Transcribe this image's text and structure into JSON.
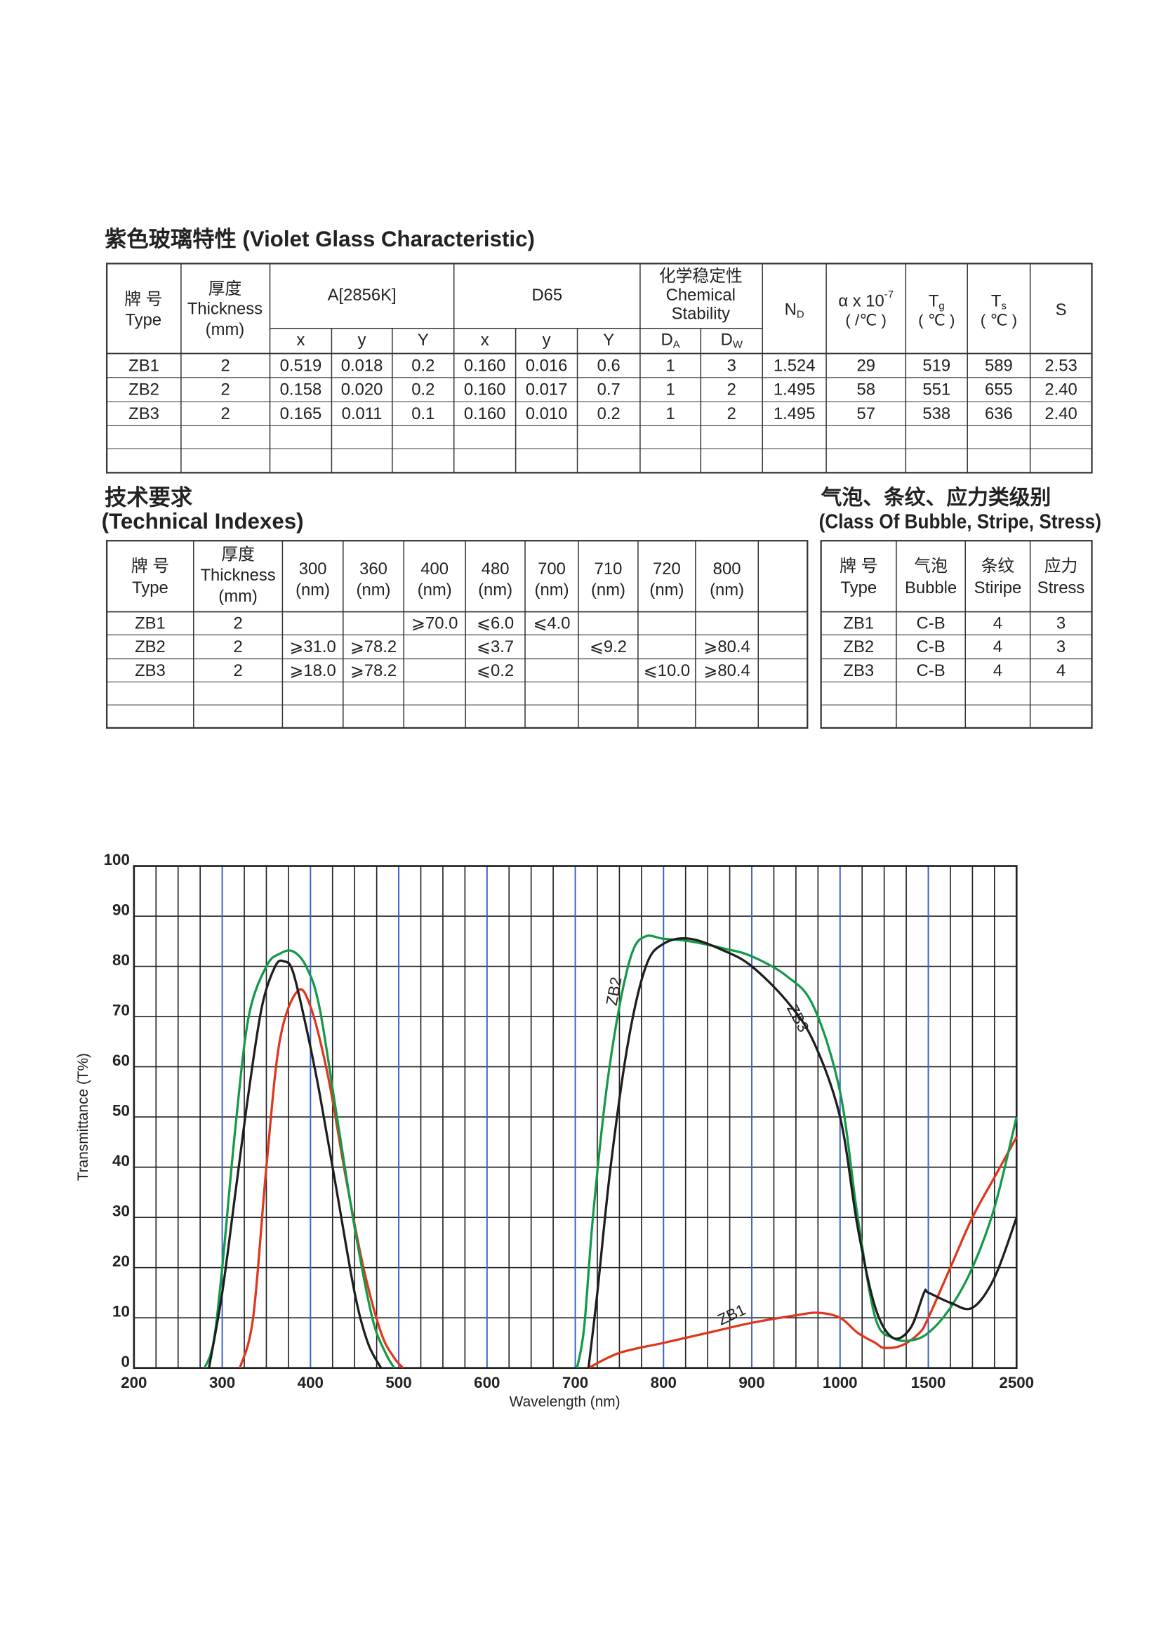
{
  "table1": {
    "title": "紫色玻璃特性 (Violet Glass Characteristic)",
    "h_type": [
      "牌 号",
      "Type"
    ],
    "h_thickness": [
      "厚度",
      "Thickness",
      "(mm)"
    ],
    "h_a": "A[2856K]",
    "h_d65": "D65",
    "h_chem": [
      "化学稳定性",
      "Chemical",
      "Stability"
    ],
    "h_sub": [
      "x",
      "y",
      "Y",
      "x",
      "y",
      "Y"
    ],
    "h_da": [
      "D",
      "A"
    ],
    "h_dw": [
      "D",
      "W"
    ],
    "h_nd": [
      "N",
      "D"
    ],
    "h_alpha": [
      "α x 10",
      "-7",
      "( /℃ )"
    ],
    "h_tg": [
      "T",
      "g",
      "( ℃ )"
    ],
    "h_ts": [
      "T",
      "s",
      "( ℃ )"
    ],
    "h_s": "S",
    "rows": [
      [
        "ZB1",
        "2",
        "0.519",
        "0.018",
        "0.2",
        "0.160",
        "0.016",
        "0.6",
        "1",
        "3",
        "1.524",
        "29",
        "519",
        "589",
        "2.53"
      ],
      [
        "ZB2",
        "2",
        "0.158",
        "0.020",
        "0.2",
        "0.160",
        "0.017",
        "0.7",
        "1",
        "2",
        "1.495",
        "58",
        "551",
        "655",
        "2.40"
      ],
      [
        "ZB3",
        "2",
        "0.165",
        "0.011",
        "0.1",
        "0.160",
        "0.010",
        "0.2",
        "1",
        "2",
        "1.495",
        "57",
        "538",
        "636",
        "2.40"
      ]
    ]
  },
  "table2": {
    "title_cn": "技术要求",
    "title_en": "(Technical Indexes)",
    "h_type": [
      "牌 号",
      "Type"
    ],
    "h_thickness": [
      "厚度",
      "Thickness",
      "(mm)"
    ],
    "h_wl": [
      [
        "300",
        "(nm)"
      ],
      [
        "360",
        "(nm)"
      ],
      [
        "400",
        "(nm)"
      ],
      [
        "480",
        "(nm)"
      ],
      [
        "700",
        "(nm)"
      ],
      [
        "710",
        "(nm)"
      ],
      [
        "720",
        "(nm)"
      ],
      [
        "800",
        "(nm)"
      ]
    ],
    "rows": [
      [
        "ZB1",
        "2",
        null,
        null,
        "⩾70.0",
        "⩽6.0",
        "⩽4.0",
        null,
        null,
        null,
        null
      ],
      [
        "ZB2",
        "2",
        "⩾31.0",
        "⩾78.2",
        null,
        "⩽3.7",
        null,
        "⩽9.2",
        null,
        "⩾80.4",
        null
      ],
      [
        "ZB3",
        "2",
        "⩾18.0",
        "⩾78.2",
        null,
        "⩽0.2",
        null,
        null,
        "⩽10.0",
        "⩾80.4",
        null
      ]
    ]
  },
  "table3": {
    "title_cn": "气泡、条纹、应力类级别",
    "title_en": "(Class Of Bubble, Stripe, Stress)",
    "headers": [
      [
        "牌 号",
        "Type"
      ],
      [
        "气泡",
        "Bubble"
      ],
      [
        "条纹",
        "Stiripe"
      ],
      [
        "应力",
        "Stress"
      ]
    ],
    "rows": [
      [
        "ZB1",
        "C-B",
        "4",
        "3"
      ],
      [
        "ZB2",
        "C-B",
        "4",
        "3"
      ],
      [
        "ZB3",
        "C-B",
        "4",
        "4"
      ]
    ]
  },
  "chart_data": {
    "type": "line",
    "xlabel": "Wavelength (nm)",
    "ylabel": "Transmittance (T%)",
    "xlim": [
      200,
      2500
    ],
    "xticks": [
      200,
      300,
      400,
      500,
      600,
      700,
      800,
      900,
      1000,
      1500,
      2500
    ],
    "ylim": [
      0,
      100
    ],
    "yticks": [
      0,
      10,
      20,
      30,
      40,
      50,
      60,
      70,
      80,
      90,
      100
    ],
    "grid": true,
    "series": [
      {
        "name": "ZB1",
        "color": "#e0361c",
        "x": [
          320,
          335,
          350,
          365,
          385,
          400,
          420,
          440,
          460,
          480,
          495,
          505,
          600,
          715,
          750,
          800,
          850,
          900,
          950,
          975,
          1000,
          1100,
          1200,
          1250,
          1350,
          1450,
          1500,
          1750,
          2000,
          2250,
          2500
        ],
        "values": [
          0,
          10,
          40,
          65,
          75,
          72,
          58,
          38,
          20,
          7,
          2,
          0,
          null,
          0,
          3,
          5,
          7,
          9,
          10.5,
          11,
          10,
          7,
          5,
          4,
          4.5,
          7,
          10,
          20,
          30,
          38,
          46
        ]
      },
      {
        "name": "ZB2",
        "color": "#139a48",
        "x": [
          280,
          290,
          300,
          315,
          330,
          350,
          365,
          380,
          395,
          410,
          430,
          450,
          470,
          485,
          495,
          600,
          702,
          710,
          720,
          735,
          750,
          765,
          780,
          800,
          830,
          870,
          900,
          940,
          970,
          1000,
          1100,
          1200,
          1300,
          1400,
          1500,
          1750,
          2000,
          2250,
          2500
        ],
        "values": [
          0,
          5,
          20,
          48,
          70,
          80,
          82.5,
          83,
          80,
          72,
          50,
          28,
          10,
          3,
          0,
          null,
          0,
          8,
          30,
          55,
          72,
          83,
          86,
          85.5,
          85,
          83.5,
          82,
          78,
          72,
          55,
          30,
          10,
          6,
          5.5,
          7,
          12,
          20,
          32,
          50
        ]
      },
      {
        "name": "ZB3",
        "color": "#1e1e1e",
        "x": [
          285,
          300,
          315,
          330,
          345,
          360,
          370,
          380,
          395,
          410,
          430,
          450,
          465,
          480,
          600,
          715,
          725,
          740,
          760,
          780,
          800,
          830,
          870,
          900,
          940,
          970,
          1000,
          1100,
          1200,
          1300,
          1400,
          1476,
          1500,
          1750,
          2000,
          2250,
          2500
        ],
        "values": [
          0,
          15,
          35,
          55,
          72,
          80,
          81,
          79,
          68,
          55,
          35,
          15,
          5,
          0,
          null,
          0,
          15,
          40,
          65,
          80,
          84.5,
          85.5,
          83,
          80,
          73,
          65,
          50,
          28,
          12,
          6,
          8,
          15,
          15,
          13,
          12,
          18,
          30
        ]
      }
    ]
  }
}
